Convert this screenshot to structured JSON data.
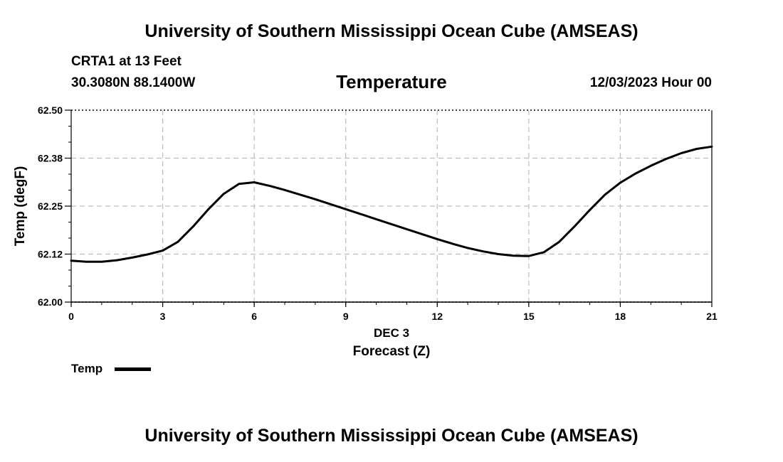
{
  "header": {
    "title": "University of Southern Mississippi Ocean Cube (AMSEAS)",
    "station": "CRTA1 at 13 Feet",
    "coordinates": "30.3080N  88.1400W",
    "variable": "Temperature",
    "datetime": "12/03/2023 Hour 00"
  },
  "footer": {
    "title": "University of Southern Mississippi Ocean Cube (AMSEAS)"
  },
  "legend": {
    "label": "Temp",
    "color": "#000000"
  },
  "chart_data": {
    "type": "line",
    "title": "Temperature",
    "xlabel": "Forecast (Z)",
    "xsublabel": "DEC 3",
    "ylabel": "Temp (degF)",
    "xlim": [
      0,
      21
    ],
    "ylim": [
      62.0,
      62.5
    ],
    "xticks": [
      0,
      3,
      6,
      9,
      12,
      15,
      18,
      21
    ],
    "yticks": [
      62.0,
      62.125,
      62.25,
      62.375,
      62.5
    ],
    "ytick_labels": [
      "62.00",
      "62.12",
      "62.25",
      "62.38",
      "62.50"
    ],
    "grid": true,
    "legend_position": "bottom-left",
    "series": [
      {
        "name": "Temp",
        "color": "#000000",
        "x": [
          0,
          0.5,
          1,
          1.5,
          2,
          2.5,
          3,
          3.5,
          4,
          4.5,
          5,
          5.5,
          6,
          6.5,
          7,
          7.5,
          8,
          8.5,
          9,
          9.5,
          10,
          10.5,
          11,
          11.5,
          12,
          12.5,
          13,
          13.5,
          14,
          14.5,
          15,
          15.5,
          16,
          16.5,
          17,
          17.5,
          18,
          18.5,
          19,
          19.5,
          20,
          20.5,
          21
        ],
        "y": [
          62.108,
          62.105,
          62.105,
          62.109,
          62.116,
          62.124,
          62.134,
          62.157,
          62.197,
          62.242,
          62.282,
          62.308,
          62.312,
          62.303,
          62.292,
          62.28,
          62.268,
          62.255,
          62.242,
          62.229,
          62.216,
          62.203,
          62.19,
          62.177,
          62.164,
          62.152,
          62.141,
          62.132,
          62.125,
          62.121,
          62.12,
          62.13,
          62.157,
          62.197,
          62.24,
          62.28,
          62.311,
          62.335,
          62.355,
          62.373,
          62.388,
          62.399,
          62.405
        ]
      }
    ]
  }
}
